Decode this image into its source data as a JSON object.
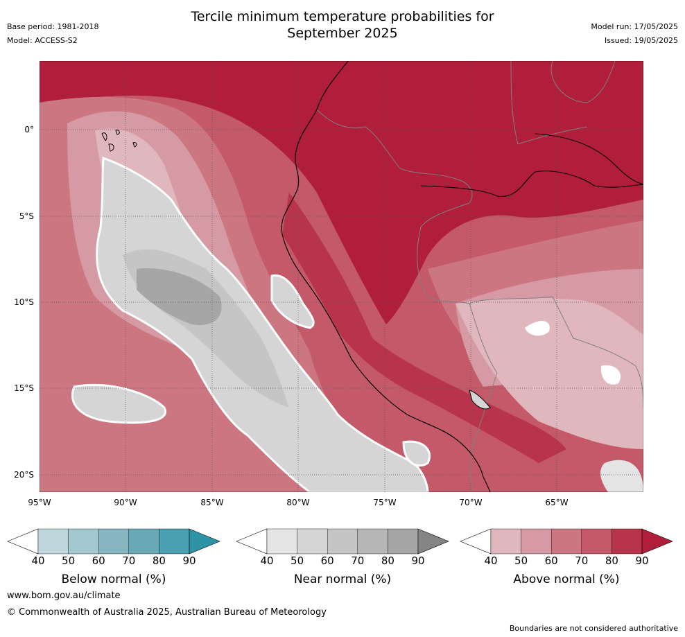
{
  "header": {
    "title_line1": "Tercile minimum temperature probabilities for",
    "title_line2": "September 2025",
    "base_period": "Base period: 1981-2018",
    "model": "Model: ACCESS-S2",
    "model_run": "Model run: 17/05/2025",
    "issued": "Issued: 19/05/2025"
  },
  "map": {
    "lat_labels": [
      "0°",
      "5°S",
      "10°S",
      "15°S",
      "20°S"
    ],
    "lon_labels": [
      "95°W",
      "90°W",
      "85°W",
      "80°W",
      "75°W",
      "70°W",
      "65°W"
    ]
  },
  "colorbars": [
    {
      "title": "Below normal (%)",
      "ticks": [
        "40",
        "50",
        "60",
        "70",
        "80",
        "90"
      ],
      "colors": [
        "#ffffff",
        "#bdd7dc",
        "#a4c8cf",
        "#86b6c2",
        "#69a9b6",
        "#4aa0b0",
        "#2d93a5"
      ]
    },
    {
      "title": "Near normal (%)",
      "ticks": [
        "40",
        "50",
        "60",
        "70",
        "80",
        "90"
      ],
      "colors": [
        "#ffffff",
        "#e4e4e4",
        "#d5d5d5",
        "#c5c5c5",
        "#b6b6b6",
        "#a6a6a6",
        "#858585"
      ]
    },
    {
      "title": "Above normal (%)",
      "ticks": [
        "40",
        "50",
        "60",
        "70",
        "80",
        "90"
      ],
      "colors": [
        "#ffffff",
        "#e0b7bd",
        "#d59aa3",
        "#cc7682",
        "#c45a69",
        "#b7344b",
        "#b01e3c"
      ]
    }
  ],
  "footer": {
    "url": "www.bom.gov.au/climate",
    "copyright": "© Commonwealth of Australia 2025, Australian Bureau of Meteorology",
    "disclaimer": "Boundaries are not considered authoritative"
  }
}
